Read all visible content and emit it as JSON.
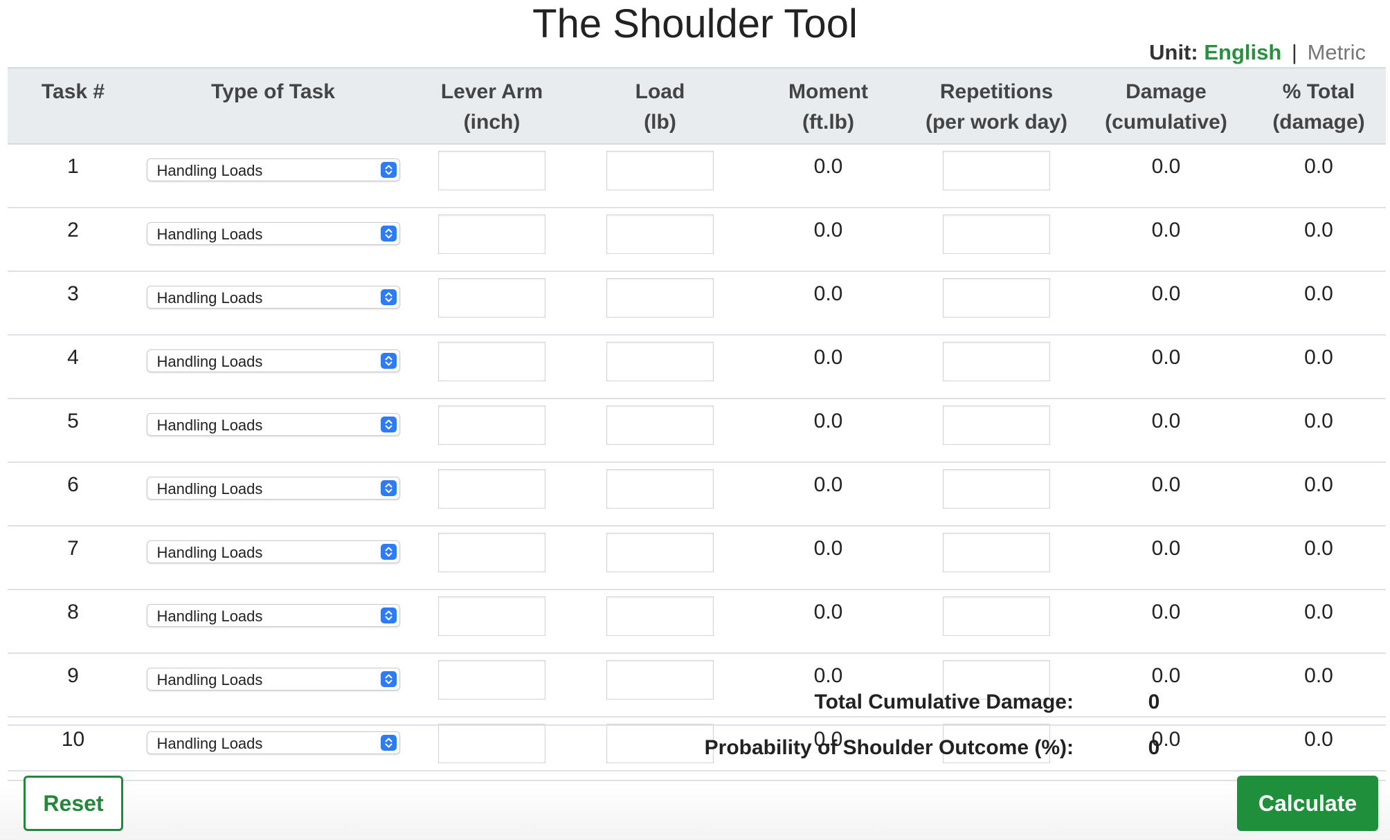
{
  "title": "The Shoulder Tool",
  "unit": {
    "label": "Unit:",
    "english": "English",
    "separator": "|",
    "metric": "Metric",
    "selected": "English"
  },
  "table": {
    "headers": {
      "task_num": "Task #",
      "type": "Type of Task",
      "lever_arm": [
        "Lever Arm",
        "(inch)"
      ],
      "load": [
        "Load",
        "(lb)"
      ],
      "moment": [
        "Moment",
        "(ft.lb)"
      ],
      "repetitions": [
        "Repetitions",
        "(per work day)"
      ],
      "damage": [
        "Damage",
        "(cumulative)"
      ],
      "pct_total": [
        "% Total",
        "(damage)"
      ]
    },
    "rows": [
      {
        "task": "1",
        "type": "Handling Loads",
        "lever_arm": "",
        "load": "",
        "moment": "0.0",
        "repetitions": "",
        "damage": "0.0",
        "pct_total": "0.0"
      },
      {
        "task": "2",
        "type": "Handling Loads",
        "lever_arm": "",
        "load": "",
        "moment": "0.0",
        "repetitions": "",
        "damage": "0.0",
        "pct_total": "0.0"
      },
      {
        "task": "3",
        "type": "Handling Loads",
        "lever_arm": "",
        "load": "",
        "moment": "0.0",
        "repetitions": "",
        "damage": "0.0",
        "pct_total": "0.0"
      },
      {
        "task": "4",
        "type": "Handling Loads",
        "lever_arm": "",
        "load": "",
        "moment": "0.0",
        "repetitions": "",
        "damage": "0.0",
        "pct_total": "0.0"
      },
      {
        "task": "5",
        "type": "Handling Loads",
        "lever_arm": "",
        "load": "",
        "moment": "0.0",
        "repetitions": "",
        "damage": "0.0",
        "pct_total": "0.0"
      },
      {
        "task": "6",
        "type": "Handling Loads",
        "lever_arm": "",
        "load": "",
        "moment": "0.0",
        "repetitions": "",
        "damage": "0.0",
        "pct_total": "0.0"
      },
      {
        "task": "7",
        "type": "Handling Loads",
        "lever_arm": "",
        "load": "",
        "moment": "0.0",
        "repetitions": "",
        "damage": "0.0",
        "pct_total": "0.0"
      },
      {
        "task": "8",
        "type": "Handling Loads",
        "lever_arm": "",
        "load": "",
        "moment": "0.0",
        "repetitions": "",
        "damage": "0.0",
        "pct_total": "0.0"
      },
      {
        "task": "9",
        "type": "Handling Loads",
        "lever_arm": "",
        "load": "",
        "moment": "0.0",
        "repetitions": "",
        "damage": "0.0",
        "pct_total": "0.0"
      },
      {
        "task": "10",
        "type": "Handling Loads",
        "lever_arm": "",
        "load": "",
        "moment": "0.0",
        "repetitions": "",
        "damage": "0.0",
        "pct_total": "0.0"
      }
    ]
  },
  "summary": {
    "total_label": "Total Cumulative Damage:",
    "total_value": "0",
    "probability_label": "Probability of Shoulder Outcome (%):",
    "probability_value": "0"
  },
  "buttons": {
    "reset": "Reset",
    "calculate": "Calculate"
  },
  "colors": {
    "accent_green": "#1f8f3c",
    "select_chevron_blue": "#2d7cf6",
    "header_bg": "#e9ecef"
  },
  "icons": {
    "select_indicator": "chevron-up-down-icon"
  }
}
